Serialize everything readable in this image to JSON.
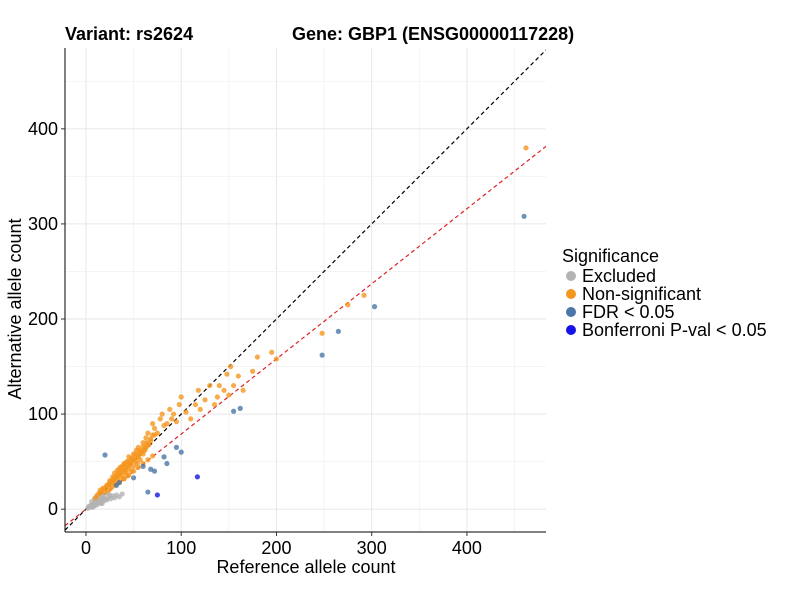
{
  "chart_data": {
    "type": "scatter",
    "title_left": "Variant: rs2624",
    "title_right": "Gene: GBP1 (ENSG00000117228)",
    "xlabel": "Reference allele count",
    "ylabel": "Alternative allele count",
    "xlim": [
      -22,
      483
    ],
    "ylim": [
      -24,
      485
    ],
    "xticks": [
      0,
      100,
      200,
      300,
      400
    ],
    "yticks": [
      0,
      100,
      200,
      300,
      400
    ],
    "grid": true,
    "legend": {
      "title": "Significance",
      "position": "right",
      "entries": [
        {
          "name": "Excluded",
          "color": "#b3b3b3"
        },
        {
          "name": "Non-significant",
          "color": "#f5961e"
        },
        {
          "name": "FDR < 0.05",
          "color": "#4a77a8"
        },
        {
          "name": "Bonferroni P-val < 0.05",
          "color": "#1414e6"
        }
      ]
    },
    "reference_lines": [
      {
        "name": "identity",
        "slope": 1,
        "intercept": 0,
        "color": "#000000",
        "dash": true
      },
      {
        "name": "fit",
        "slope": 0.79,
        "intercept": 0,
        "color": "#e02020",
        "dash": true
      }
    ],
    "series": [
      {
        "name": "Excluded",
        "color": "#b3b3b3",
        "x": [
          2,
          4,
          5,
          6,
          7,
          8,
          8,
          9,
          10,
          10,
          11,
          12,
          12,
          13,
          14,
          15,
          16,
          17,
          18,
          19,
          20,
          22,
          24,
          26,
          28,
          30,
          32,
          35,
          38,
          6,
          9,
          11,
          13,
          15,
          18,
          21,
          25,
          3,
          7,
          12,
          16,
          22
        ],
        "y": [
          1,
          2,
          4,
          3,
          5,
          3,
          6,
          5,
          7,
          4,
          6,
          8,
          5,
          9,
          7,
          10,
          8,
          6,
          12,
          9,
          11,
          10,
          13,
          11,
          14,
          12,
          15,
          13,
          16,
          8,
          11,
          13,
          9,
          12,
          14,
          10,
          15,
          3,
          2,
          10,
          6,
          17
        ]
      },
      {
        "name": "Non-significant",
        "color": "#f5961e",
        "x": [
          15,
          18,
          20,
          22,
          24,
          25,
          26,
          28,
          28,
          30,
          30,
          31,
          32,
          33,
          34,
          35,
          35,
          36,
          38,
          38,
          40,
          40,
          41,
          42,
          43,
          44,
          45,
          45,
          46,
          48,
          48,
          50,
          50,
          52,
          53,
          54,
          55,
          55,
          57,
          58,
          60,
          60,
          62,
          63,
          65,
          65,
          68,
          70,
          70,
          72,
          75,
          78,
          80,
          82,
          85,
          88,
          90,
          92,
          95,
          98,
          100,
          105,
          110,
          115,
          118,
          120,
          125,
          130,
          135,
          138,
          140,
          145,
          148,
          150,
          152,
          155,
          160,
          165,
          175,
          180,
          195,
          200,
          248,
          275,
          292,
          462,
          10,
          12,
          14,
          16,
          18,
          20,
          22,
          24,
          26,
          28,
          30,
          32,
          34,
          36,
          38,
          40,
          42,
          44,
          46,
          48,
          50,
          52,
          54,
          56,
          58,
          60,
          62,
          64,
          66,
          35,
          40,
          45,
          50,
          55,
          60,
          65,
          70,
          25,
          28,
          30,
          33,
          36,
          40,
          44,
          48,
          52,
          56,
          60,
          64,
          68,
          72
        ],
        "y": [
          20,
          22,
          18,
          25,
          20,
          28,
          22,
          30,
          24,
          27,
          33,
          26,
          35,
          30,
          38,
          28,
          42,
          33,
          36,
          45,
          32,
          48,
          40,
          38,
          50,
          35,
          42,
          55,
          46,
          40,
          52,
          45,
          58,
          50,
          62,
          48,
          55,
          65,
          52,
          60,
          58,
          70,
          62,
          75,
          68,
          80,
          72,
          78,
          90,
          85,
          80,
          95,
          100,
          88,
          90,
          105,
          95,
          100,
          92,
          110,
          118,
          102,
          95,
          110,
          125,
          105,
          115,
          130,
          110,
          118,
          130,
          125,
          142,
          120,
          150,
          130,
          140,
          125,
          145,
          160,
          165,
          158,
          185,
          215,
          225,
          380,
          12,
          15,
          17,
          18,
          21,
          22,
          25,
          26,
          28,
          30,
          32,
          34,
          36,
          38,
          40,
          42,
          44,
          46,
          48,
          50,
          52,
          54,
          56,
          58,
          60,
          62,
          64,
          66,
          68,
          28,
          32,
          36,
          40,
          44,
          48,
          52,
          56,
          30,
          34,
          38,
          41,
          44,
          47,
          50,
          54,
          58,
          62,
          66,
          70,
          74,
          78
        ]
      },
      {
        "name": "FDR < 0.05",
        "color": "#4a77a8",
        "x": [
          20,
          32,
          35,
          50,
          60,
          65,
          68,
          72,
          82,
          85,
          95,
          100,
          155,
          162,
          248,
          265,
          303,
          460
        ],
        "y": [
          57,
          25,
          28,
          33,
          45,
          18,
          42,
          40,
          55,
          48,
          65,
          60,
          103,
          106,
          162,
          187,
          213,
          308
        ]
      },
      {
        "name": "Bonferroni P-val < 0.05",
        "color": "#1414e6",
        "x": [
          75,
          117
        ],
        "y": [
          15,
          34
        ]
      }
    ]
  }
}
